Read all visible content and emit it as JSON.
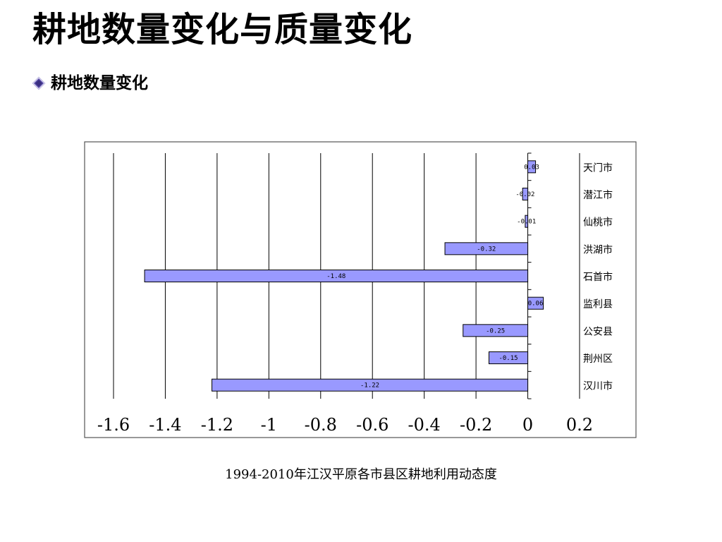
{
  "slide": {
    "title": "耕地数量变化与质量变化",
    "bullet": "耕地数量变化"
  },
  "colors": {
    "bar_fill": "#9999ff",
    "bar_stroke": "#000000",
    "grid": "#000000"
  },
  "chart_data": {
    "type": "bar",
    "orientation": "horizontal",
    "categories": [
      "天门市",
      "潜江市",
      "仙桃市",
      "洪湖市",
      "石首市",
      "监利县",
      "公安县",
      "荆州区",
      "汉川市"
    ],
    "values": [
      0.03,
      -0.02,
      -0.01,
      -0.32,
      -1.48,
      0.06,
      -0.25,
      -0.15,
      -1.22
    ],
    "data_labels": [
      "0.03",
      "-0.02",
      "-0.01",
      "-0.32",
      "-1.48",
      "0.06",
      "-0.25",
      "-0.15",
      "-1.22"
    ],
    "x_ticks": [
      "-1.6",
      "-1.4",
      "-1.2",
      "-1",
      "-0.8",
      "-0.6",
      "-0.4",
      "-0.2",
      "0",
      "0.2"
    ],
    "xlim": [
      -1.6,
      0.2
    ],
    "grid": "vertical",
    "category_labels_side": "right",
    "caption": "1994-2010年江汉平原各市县区耕地利用动态度"
  }
}
